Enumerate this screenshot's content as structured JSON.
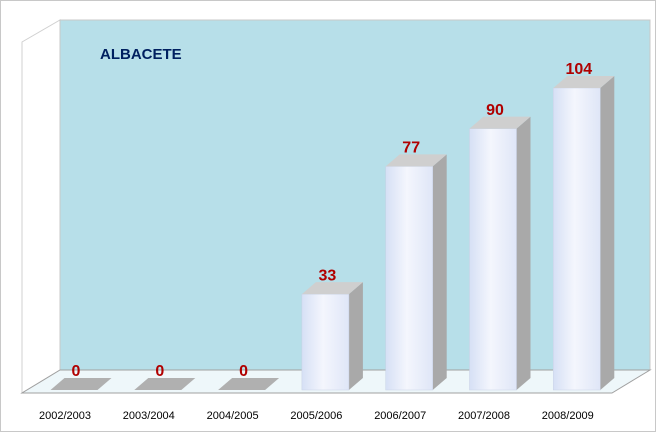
{
  "chart_data": {
    "type": "bar",
    "title": "ALBACETE",
    "categories": [
      "2002/2003",
      "2003/2004",
      "2004/2005",
      "2005/2006",
      "2006/2007",
      "2007/2008",
      "2008/2009"
    ],
    "values": [
      0,
      0,
      0,
      33,
      77,
      90,
      104
    ]
  }
}
